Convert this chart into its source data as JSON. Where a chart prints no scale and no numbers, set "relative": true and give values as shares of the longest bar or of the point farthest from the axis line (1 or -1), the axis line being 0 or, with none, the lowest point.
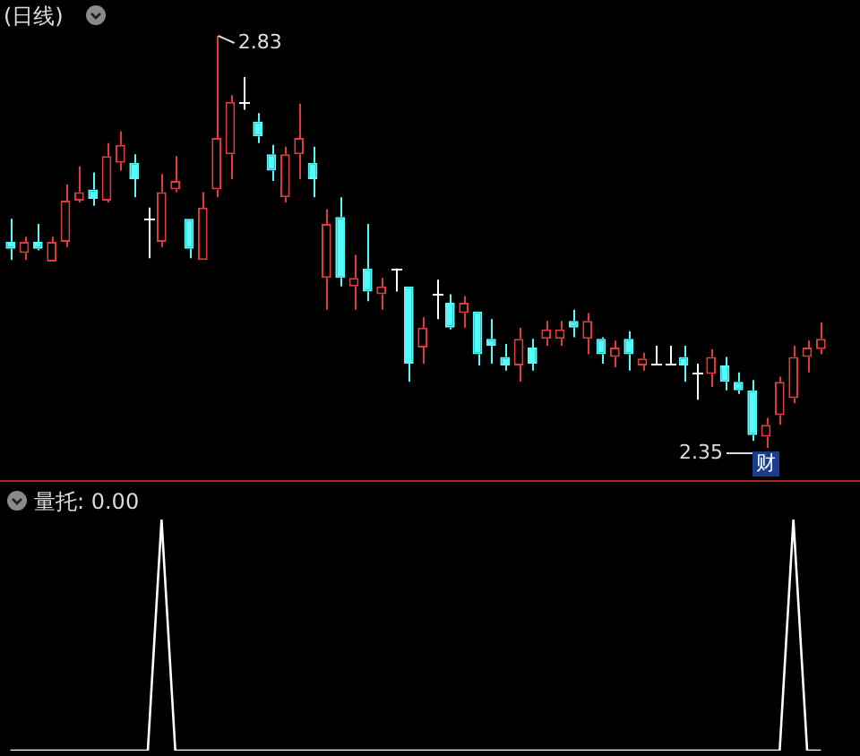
{
  "chart_data": [
    {
      "type": "candlestick",
      "title": "(日线)",
      "categories": [
        null,
        null,
        null,
        null,
        null,
        null,
        null,
        null,
        null,
        null,
        null,
        null,
        null,
        null,
        null,
        null,
        null,
        null,
        null,
        null,
        null,
        null,
        null,
        null,
        null,
        null,
        null,
        null,
        null,
        null,
        null,
        null,
        null,
        null,
        null,
        null,
        null,
        null,
        null,
        null,
        null,
        null,
        null,
        null,
        null,
        null,
        null,
        null,
        null,
        null,
        null,
        null,
        null,
        null,
        null,
        null,
        null,
        null,
        null,
        null
      ],
      "ohlc": [
        [
          2.59,
          2.617,
          2.569,
          2.582
        ],
        [
          2.577,
          2.596,
          2.569,
          2.59
        ],
        [
          2.59,
          2.611,
          2.58,
          2.582
        ],
        [
          2.567,
          2.596,
          2.567,
          2.59
        ],
        [
          2.59,
          2.657,
          2.584,
          2.638
        ],
        [
          2.638,
          2.678,
          2.636,
          2.648
        ],
        [
          2.651,
          2.671,
          2.632,
          2.64
        ],
        [
          2.638,
          2.705,
          2.636,
          2.69
        ],
        [
          2.682,
          2.719,
          2.673,
          2.703
        ],
        [
          2.682,
          2.692,
          2.642,
          2.663
        ],
        [
          2.617,
          2.63,
          2.571,
          2.617
        ],
        [
          2.59,
          2.669,
          2.584,
          2.648
        ],
        [
          2.651,
          2.69,
          2.648,
          2.661
        ],
        [
          2.617,
          2.617,
          2.571,
          2.582
        ],
        [
          2.569,
          2.648,
          2.569,
          2.63
        ],
        [
          2.651,
          2.83,
          2.642,
          2.711
        ],
        [
          2.692,
          2.761,
          2.663,
          2.753
        ],
        [
          2.753,
          2.782,
          2.744,
          2.753
        ],
        [
          2.73,
          2.74,
          2.705,
          2.713
        ],
        [
          2.692,
          2.703,
          2.661,
          2.673
        ],
        [
          2.642,
          2.701,
          2.636,
          2.692
        ],
        [
          2.692,
          2.751,
          2.663,
          2.711
        ],
        [
          2.682,
          2.701,
          2.642,
          2.663
        ],
        [
          2.548,
          2.628,
          2.511,
          2.611
        ],
        [
          2.619,
          2.642,
          2.538,
          2.548
        ],
        [
          2.538,
          2.575,
          2.511,
          2.548
        ],
        [
          2.559,
          2.611,
          2.521,
          2.532
        ],
        [
          2.529,
          2.548,
          2.511,
          2.538
        ],
        [
          2.559,
          2.559,
          2.532,
          2.559
        ],
        [
          2.538,
          2.538,
          2.427,
          2.448
        ],
        [
          2.467,
          2.502,
          2.448,
          2.49
        ],
        [
          2.529,
          2.546,
          2.5,
          2.529
        ],
        [
          2.519,
          2.529,
          2.488,
          2.49
        ],
        [
          2.507,
          2.527,
          2.49,
          2.519
        ],
        [
          2.509,
          2.509,
          2.446,
          2.459
        ],
        [
          2.477,
          2.5,
          2.448,
          2.469
        ],
        [
          2.456,
          2.471,
          2.44,
          2.446
        ],
        [
          2.446,
          2.49,
          2.427,
          2.477
        ],
        [
          2.467,
          2.477,
          2.44,
          2.448
        ],
        [
          2.477,
          2.498,
          2.469,
          2.488
        ],
        [
          2.477,
          2.498,
          2.469,
          2.488
        ],
        [
          2.498,
          2.511,
          2.479,
          2.49
        ],
        [
          2.477,
          2.507,
          2.459,
          2.498
        ],
        [
          2.477,
          2.479,
          2.448,
          2.459
        ],
        [
          2.456,
          2.475,
          2.444,
          2.467
        ],
        [
          2.477,
          2.486,
          2.44,
          2.459
        ],
        [
          2.446,
          2.461,
          2.44,
          2.454
        ],
        [
          2.448,
          2.469,
          2.448,
          2.448
        ],
        [
          2.448,
          2.469,
          2.446,
          2.448
        ],
        [
          2.456,
          2.469,
          2.427,
          2.446
        ],
        [
          2.438,
          2.448,
          2.406,
          2.438
        ],
        [
          2.436,
          2.465,
          2.421,
          2.456
        ],
        [
          2.446,
          2.456,
          2.417,
          2.427
        ],
        [
          2.427,
          2.438,
          2.413,
          2.417
        ],
        [
          2.417,
          2.429,
          2.358,
          2.365
        ],
        [
          2.363,
          2.385,
          2.35,
          2.377
        ],
        [
          2.388,
          2.433,
          2.377,
          2.427
        ],
        [
          2.408,
          2.469,
          2.402,
          2.456
        ],
        [
          2.456,
          2.475,
          2.438,
          2.467
        ],
        [
          2.465,
          2.496,
          2.459,
          2.477
        ]
      ],
      "colors": [
        "#54fcfc",
        "#e03c3c",
        "#54fcfc",
        "#e03c3c",
        "#e03c3c",
        "#e03c3c",
        "#54fcfc",
        "#e03c3c",
        "#e03c3c",
        "#54fcfc",
        "#ffffff",
        "#e03c3c",
        "#e03c3c",
        "#54fcfc",
        "#e03c3c",
        "#e03c3c",
        "#e03c3c",
        "#ffffff",
        "#54fcfc",
        "#54fcfc",
        "#e03c3c",
        "#e03c3c",
        "#54fcfc",
        "#e03c3c",
        "#54fcfc",
        "#e03c3c",
        "#54fcfc",
        "#e03c3c",
        "#ffffff",
        "#54fcfc",
        "#e03c3c",
        "#ffffff",
        "#54fcfc",
        "#e03c3c",
        "#54fcfc",
        "#54fcfc",
        "#54fcfc",
        "#e03c3c",
        "#54fcfc",
        "#e03c3c",
        "#e03c3c",
        "#54fcfc",
        "#e03c3c",
        "#54fcfc",
        "#e03c3c",
        "#54fcfc",
        "#e03c3c",
        "#ffffff",
        "#ffffff",
        "#54fcfc",
        "#ffffff",
        "#e03c3c",
        "#54fcfc",
        "#54fcfc",
        "#54fcfc",
        "#e03c3c",
        "#e03c3c",
        "#e03c3c",
        "#e03c3c",
        "#e03c3c"
      ],
      "annotations": [
        "2.83",
        "2.35",
        "财"
      ]
    },
    {
      "type": "line",
      "title": "量托: 0.00",
      "relative": true,
      "categories": [
        null,
        null,
        null,
        null,
        null,
        null,
        null,
        null,
        null,
        null,
        null,
        null,
        null,
        null,
        null,
        null,
        null,
        null,
        null,
        null,
        null,
        null,
        null,
        null,
        null,
        null,
        null,
        null,
        null,
        null,
        null,
        null,
        null,
        null,
        null,
        null,
        null,
        null,
        null,
        null,
        null,
        null,
        null,
        null,
        null,
        null,
        null,
        null,
        null,
        null,
        null,
        null,
        null,
        null,
        null,
        null,
        null,
        null,
        null,
        null
      ],
      "series": [
        {
          "color": "#ffffff",
          "values": [
            0,
            0,
            0,
            0,
            0,
            0,
            0,
            0,
            0,
            0,
            0,
            1,
            0,
            0,
            0,
            0,
            0,
            0,
            0,
            0,
            0,
            0,
            0,
            0,
            0,
            0,
            0,
            0,
            0,
            0,
            0,
            0,
            0,
            0,
            0,
            0,
            0,
            0,
            0,
            0,
            0,
            0,
            0,
            0,
            0,
            0,
            0,
            0,
            0,
            0,
            0,
            0,
            0,
            0,
            0,
            0,
            0,
            1,
            0,
            0
          ]
        }
      ]
    }
  ]
}
